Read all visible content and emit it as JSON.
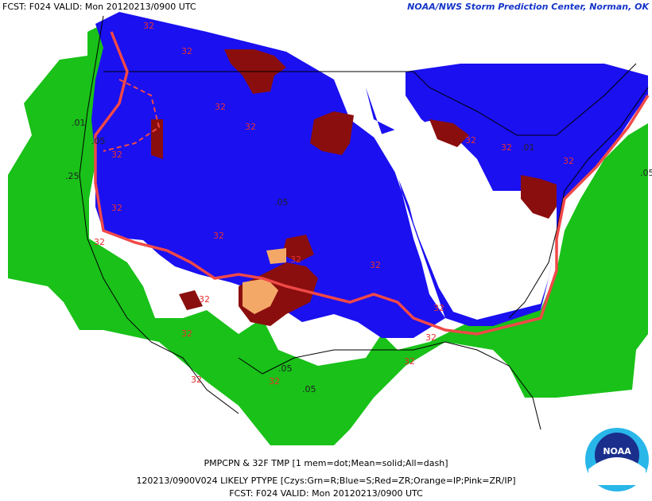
{
  "header": {
    "left": "FCST: F024  VALID: Mon  20120213/0900 UTC",
    "right": "NOAA/NWS Storm Prediction Center, Norman, OK"
  },
  "footer": {
    "line1": "PMPCPN & 32F TMP [1 mem=dot;Mean=solid;All=dash]",
    "line2": "120213/0900V024 LIKELY PTYPE [Czys:Grn=R;Blue=S;Red=ZR;Orange=IP;Pink=ZR/IP]",
    "line3": "FCST: F024  VALID: Mon  20120213/0900 UTC"
  },
  "logo": "NOAA",
  "contour_labels": [
    "32",
    "32",
    "32",
    "32",
    "32",
    "32",
    "32",
    "32",
    "32",
    "32",
    "32",
    "32",
    "32",
    "32",
    "32",
    "32",
    "32",
    "32",
    "32",
    "32",
    ".01",
    ".05",
    ".25",
    ".05",
    ".05",
    ".05",
    ".01",
    ".05"
  ]
}
